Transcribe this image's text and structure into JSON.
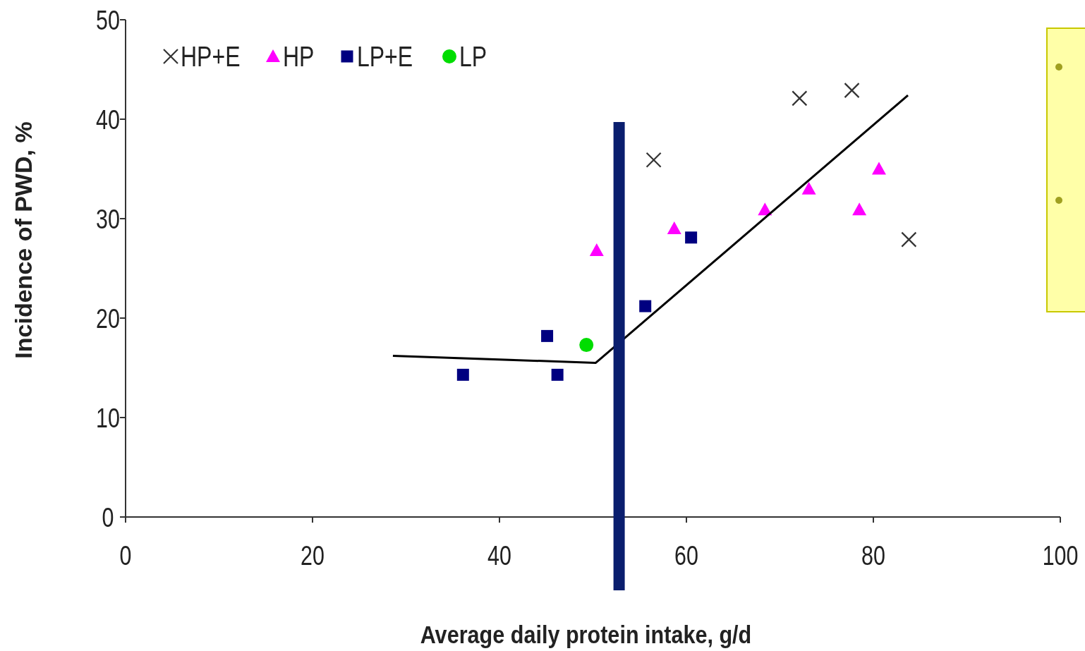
{
  "chart_data": {
    "type": "scatter",
    "xlabel": "Average daily protein intake, g/d",
    "ylabel": "Incidence of PWD, %",
    "xlim": [
      0,
      100
    ],
    "xticks": [
      0,
      20,
      40,
      60,
      80,
      100
    ],
    "ylim": [
      0,
      50
    ],
    "yticks": [
      0,
      10,
      20,
      30,
      40,
      50
    ],
    "grid": false,
    "legend": "top left",
    "series": [
      {
        "name": "HP+E",
        "color": "#333333",
        "marker": "cross",
        "x": [
          56.5,
          72.1,
          77.7,
          83.8
        ],
        "values": [
          35.9,
          42.1,
          42.9,
          27.9
        ]
      },
      {
        "name": "HP",
        "color": "#ff00ff",
        "marker": "triangle",
        "x": [
          50.4,
          58.7,
          68.4,
          73.1,
          78.5,
          80.6
        ],
        "values": [
          26.8,
          29.0,
          30.9,
          33.0,
          30.9,
          35.0
        ]
      },
      {
        "name": "LP+E",
        "color": "#000080",
        "marker": "square",
        "x": [
          36.1,
          45.1,
          46.2,
          55.6,
          60.5
        ],
        "values": [
          14.3,
          18.2,
          14.3,
          21.2,
          28.1
        ]
      },
      {
        "name": "LP",
        "color": "#00dd00",
        "marker": "circle",
        "x": [
          49.3
        ],
        "values": [
          17.3
        ]
      },
      {
        "type": "line",
        "color": "#000000",
        "marker": "none",
        "x": [
          28.6,
          50.3,
          83.7
        ],
        "values": [
          16.2,
          15.5,
          42.4
        ]
      }
    ],
    "ref_lines": [
      {
        "axis": "x",
        "value": 52.8,
        "color": "#0a1e6e"
      }
    ]
  }
}
